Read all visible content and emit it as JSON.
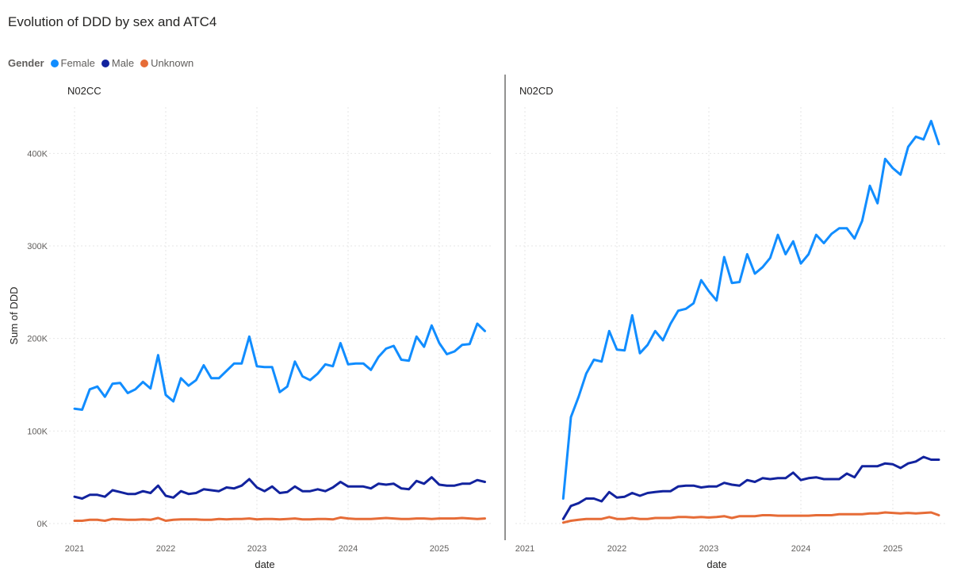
{
  "title": "Evolution of DDD by sex and ATC4",
  "legend": {
    "title": "Gender",
    "items": [
      {
        "label": "Female",
        "color": "#118dff"
      },
      {
        "label": "Male",
        "color": "#12239e"
      },
      {
        "label": "Unknown",
        "color": "#e66c37"
      }
    ]
  },
  "chart_data": {
    "type": "line",
    "title": "Evolution of DDD by sex and ATC4",
    "xlabel": "date",
    "ylabel": "Sum of DDD",
    "ylim": [
      0,
      450000
    ],
    "yticks": [
      0,
      100000,
      200000,
      300000,
      400000
    ],
    "ytick_labels": [
      "0K",
      "100K",
      "200K",
      "300K",
      "400K"
    ],
    "xticks": [
      "2021",
      "2022",
      "2023",
      "2024",
      "2025"
    ],
    "grid": true,
    "legend_position": "top-left",
    "panels": [
      {
        "name": "N02CC",
        "start": "2021-01",
        "series": [
          {
            "name": "Female",
            "color": "#118dff",
            "values": [
              124000,
              123000,
              145000,
              148000,
              137000,
              151000,
              152000,
              141000,
              145000,
              153000,
              146000,
              182000,
              139000,
              132000,
              157000,
              149000,
              155000,
              171000,
              157000,
              157000,
              165000,
              173000,
              173000,
              202000,
              170000,
              169000,
              169000,
              142000,
              148000,
              175000,
              159000,
              155000,
              162000,
              172000,
              170000,
              195000,
              172000,
              173000,
              173000,
              166000,
              180000,
              189000,
              192000,
              177000,
              176000,
              202000,
              191000,
              214000,
              195000,
              183000,
              186000,
              193000,
              194000,
              216000,
              208000
            ]
          },
          {
            "name": "Male",
            "color": "#12239e",
            "values": [
              29000,
              27000,
              31000,
              31000,
              29000,
              36000,
              34000,
              32000,
              32000,
              35000,
              33000,
              41000,
              30000,
              28000,
              35000,
              32000,
              33000,
              37000,
              36000,
              35000,
              39000,
              38000,
              41000,
              48000,
              39000,
              35000,
              40000,
              33000,
              34000,
              40000,
              35000,
              35000,
              37000,
              35000,
              39000,
              45000,
              40000,
              40000,
              40000,
              38000,
              43000,
              42000,
              43000,
              38000,
              37000,
              46000,
              43000,
              50000,
              42000,
              41000,
              41000,
              43000,
              43000,
              47000,
              45000
            ]
          },
          {
            "name": "Unknown",
            "color": "#e66c37",
            "values": [
              3000,
              3000,
              4000,
              4000,
              3000,
              5000,
              4500,
              4000,
              4000,
              4500,
              4000,
              6000,
              3000,
              4000,
              4500,
              4500,
              4500,
              4000,
              4000,
              5000,
              4500,
              5000,
              5000,
              5500,
              4500,
              5000,
              5000,
              4500,
              5000,
              5500,
              4500,
              4500,
              5000,
              5000,
              4500,
              6500,
              5500,
              5000,
              5000,
              5000,
              5500,
              6000,
              5500,
              5000,
              5000,
              5500,
              5500,
              5000,
              5500,
              5500,
              5500,
              6000,
              5500,
              5000,
              5500
            ]
          }
        ]
      },
      {
        "name": "N02CD",
        "start": "2021-06",
        "series": [
          {
            "name": "Female",
            "color": "#118dff",
            "values": [
              27000,
              115000,
              137000,
              162000,
              177000,
              175000,
              208000,
              188000,
              187000,
              225000,
              184000,
              193000,
              208000,
              198000,
              216000,
              230000,
              232000,
              238000,
              263000,
              251000,
              241000,
              288000,
              260000,
              261000,
              291000,
              270000,
              277000,
              287000,
              312000,
              291000,
              305000,
              281000,
              291000,
              312000,
              303000,
              313000,
              319000,
              319000,
              308000,
              327000,
              365000,
              346000,
              394000,
              384000,
              377000,
              407000,
              418000,
              415000,
              435000,
              410000
            ]
          },
          {
            "name": "Male",
            "color": "#12239e",
            "values": [
              5000,
              19000,
              22000,
              27000,
              27000,
              24000,
              34000,
              28000,
              29000,
              33000,
              30000,
              33000,
              34000,
              35000,
              35000,
              40000,
              41000,
              41000,
              39000,
              40000,
              40000,
              44000,
              42000,
              41000,
              47000,
              45000,
              49000,
              48000,
              49000,
              49000,
              55000,
              47000,
              49000,
              50000,
              48000,
              48000,
              48000,
              54000,
              50000,
              62000,
              62000,
              62000,
              65000,
              64000,
              60000,
              65000,
              67000,
              72000,
              69000,
              69000
            ]
          },
          {
            "name": "Unknown",
            "color": "#e66c37",
            "values": [
              1000,
              3000,
              4000,
              5000,
              5000,
              5000,
              7000,
              5000,
              5000,
              6000,
              5000,
              5000,
              6000,
              6000,
              6000,
              7000,
              7000,
              6500,
              7000,
              6500,
              7000,
              8000,
              6000,
              8000,
              8000,
              8000,
              9000,
              9000,
              8500,
              8500,
              8500,
              8500,
              8500,
              9000,
              9000,
              9000,
              10000,
              10000,
              10000,
              10000,
              11000,
              11000,
              12000,
              11500,
              11000,
              11500,
              11000,
              11500,
              12000,
              9000
            ]
          }
        ]
      }
    ]
  }
}
